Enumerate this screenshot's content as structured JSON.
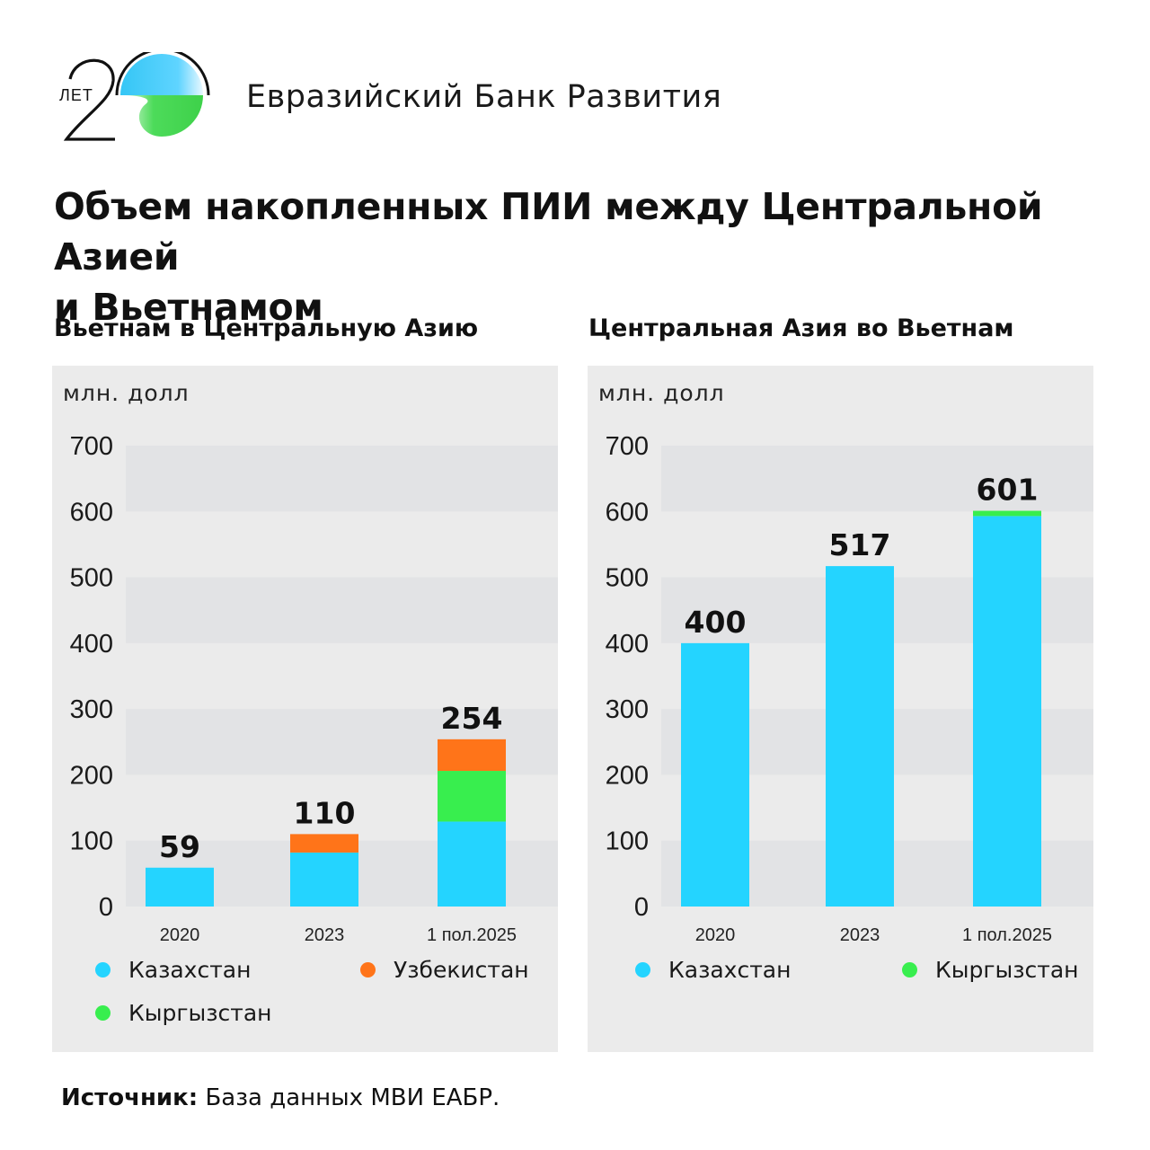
{
  "header": {
    "logo_text": "ЛЕТ",
    "logo_number": "20",
    "org_name": "Евразийский Банк Развития"
  },
  "title_line1": "Объем накопленных ПИИ между Центральной Азией",
  "title_line2": "и Вьетнамом",
  "colors": {
    "kazakhstan": "#24d4ff",
    "uzbekistan": "#ff7419",
    "kyrgyzstan": "#38ee4e",
    "panel_bg": "#ebebeb",
    "band_bg": "#e2e3e5"
  },
  "source": {
    "label": "Источник:",
    "text": " База данных МВИ ЕАБР."
  },
  "chart_data": [
    {
      "type": "bar",
      "stacked": true,
      "title": "Вьетнам в Центральную Азию",
      "ylabel": "млн. долл",
      "xlabel": "",
      "ylim": [
        0,
        700
      ],
      "yticks": [
        0,
        100,
        200,
        300,
        400,
        500,
        600,
        700
      ],
      "grid": "alternating-bands",
      "categories": [
        "2020",
        "2023",
        "1 пол.2025"
      ],
      "totals": [
        59,
        110,
        254
      ],
      "series": [
        {
          "name": "Казахстан",
          "color_key": "kazakhstan",
          "values": [
            59,
            82,
            129
          ]
        },
        {
          "name": "Кыргызстан",
          "color_key": "kyrgyzstan",
          "values": [
            0,
            0,
            77
          ]
        },
        {
          "name": "Узбекистан",
          "color_key": "uzbekistan",
          "values": [
            0,
            28,
            48
          ]
        }
      ],
      "legend": [
        {
          "name": "Казахстан",
          "color_key": "kazakhstan"
        },
        {
          "name": "Узбекистан",
          "color_key": "uzbekistan"
        },
        {
          "name": "Кыргызстан",
          "color_key": "kyrgyzstan"
        }
      ],
      "legend_position": "bottom"
    },
    {
      "type": "bar",
      "stacked": true,
      "title": "Центральная Азия во Вьетнам",
      "ylabel": "млн. долл",
      "xlabel": "",
      "ylim": [
        0,
        700
      ],
      "yticks": [
        0,
        100,
        200,
        300,
        400,
        500,
        600,
        700
      ],
      "grid": "alternating-bands",
      "categories": [
        "2020",
        "2023",
        "1 пол.2025"
      ],
      "totals": [
        400,
        517,
        601
      ],
      "series": [
        {
          "name": "Казахстан",
          "color_key": "kazakhstan",
          "values": [
            400,
            517,
            593
          ]
        },
        {
          "name": "Кыргызстан",
          "color_key": "kyrgyzstan",
          "values": [
            0,
            0,
            8
          ]
        }
      ],
      "legend": [
        {
          "name": "Казахстан",
          "color_key": "kazakhstan"
        },
        {
          "name": "Кыргызстан",
          "color_key": "kyrgyzstan"
        }
      ],
      "legend_position": "bottom"
    }
  ]
}
